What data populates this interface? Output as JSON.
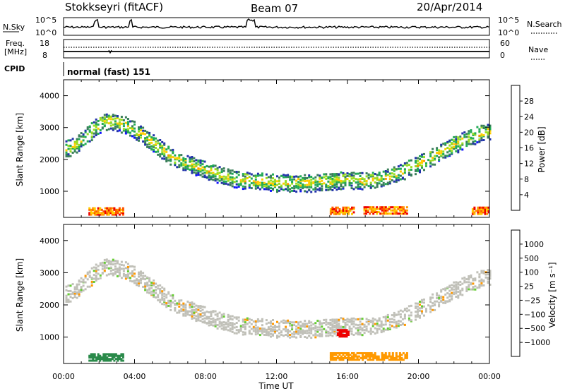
{
  "header": {
    "title": "Stokkseyri (fitACF)",
    "beam": "Beam 07",
    "date": "20/Apr/2014"
  },
  "top_panel": {
    "left_label": "N.Sky",
    "left_ticks": [
      "10^5",
      "10^0"
    ],
    "right_ticks": [
      "10^5",
      "10^0"
    ],
    "right_label": "N.Search"
  },
  "freq_panel": {
    "left_label_line1": "Freq.",
    "left_label_line2": "[MHz]",
    "left_ticks": [
      "18",
      "8"
    ],
    "right_ticks": [
      "60",
      "0"
    ],
    "right_label": "Nave"
  },
  "cpid_panel": {
    "label": "CPID",
    "mode": "normal (fast) 151"
  },
  "colors": {
    "power": [
      "#1010ff",
      "#2233aa",
      "#3a7f5a",
      "#22aa55",
      "#99dd22",
      "#ffcc00",
      "#ff9900",
      "#ff5500",
      "#ee0000"
    ],
    "velocity": [
      "#ee0000",
      "#ff5500",
      "#ff9900",
      "#c0c0b8",
      "#c0c0b8",
      "#66cc33",
      "#2a8a4a",
      "#2233aa"
    ]
  },
  "chart_data": [
    {
      "type": "heatmap",
      "name": "power",
      "ylabel": "Slant Range [km]",
      "xlabel": "",
      "ylim": [
        180,
        4500
      ],
      "xlim": [
        0,
        24
      ],
      "yticks": [
        "1000",
        "2000",
        "3000",
        "4000"
      ],
      "colorbar": {
        "label": "Power [dB]",
        "ticks": [
          "4",
          "8",
          "12",
          "16",
          "20",
          "24",
          "28"
        ]
      },
      "main_band": {
        "x_hours": [
          0,
          0.5,
          1,
          1.5,
          2,
          2.5,
          3,
          3.5,
          4,
          4.5,
          5,
          5.5,
          6,
          7,
          8,
          9,
          10,
          11,
          12,
          13,
          14,
          15,
          16,
          17,
          18,
          19,
          20,
          21,
          22,
          23,
          24
        ],
        "y_km": [
          2350,
          2450,
          2650,
          2900,
          3150,
          3250,
          3200,
          3100,
          2950,
          2750,
          2550,
          2350,
          2150,
          1900,
          1700,
          1500,
          1400,
          1350,
          1300,
          1300,
          1300,
          1350,
          1400,
          1350,
          1450,
          1650,
          1900,
          2200,
          2500,
          2750,
          2950
        ]
      },
      "near_range_echoes": [
        {
          "x0": 1.4,
          "x1": 3.4,
          "y_km": 400
        },
        {
          "x0": 15.0,
          "x1": 16.4,
          "y_km": 420
        },
        {
          "x0": 16.9,
          "x1": 19.4,
          "y_km": 430
        },
        {
          "x0": 23.0,
          "x1": 24.0,
          "y_km": 420
        }
      ]
    },
    {
      "type": "heatmap",
      "name": "velocity",
      "ylabel": "Slant Range [km]",
      "xlabel": "Time UT",
      "ylim": [
        180,
        4500
      ],
      "xlim": [
        0,
        24
      ],
      "yticks": [
        "1000",
        "2000",
        "3000",
        "4000"
      ],
      "xticks": [
        "00:00",
        "04:00",
        "08:00",
        "12:00",
        "16:00",
        "20:00",
        "00:00"
      ],
      "colorbar": {
        "label": "Velocity [m s⁻¹]",
        "ticks": [
          "1000",
          "500",
          "100",
          "25",
          "−25",
          "−100",
          "−500",
          "−1000"
        ]
      },
      "near_range_echoes": [
        {
          "x0": 1.4,
          "x1": 3.4,
          "y_km": 400,
          "velocity": 150
        },
        {
          "x0": 15.0,
          "x1": 19.4,
          "y_km": 430,
          "velocity": -300
        },
        {
          "x0": 15.4,
          "x1": 16.0,
          "y_km": 1150,
          "velocity": -800
        }
      ]
    }
  ]
}
